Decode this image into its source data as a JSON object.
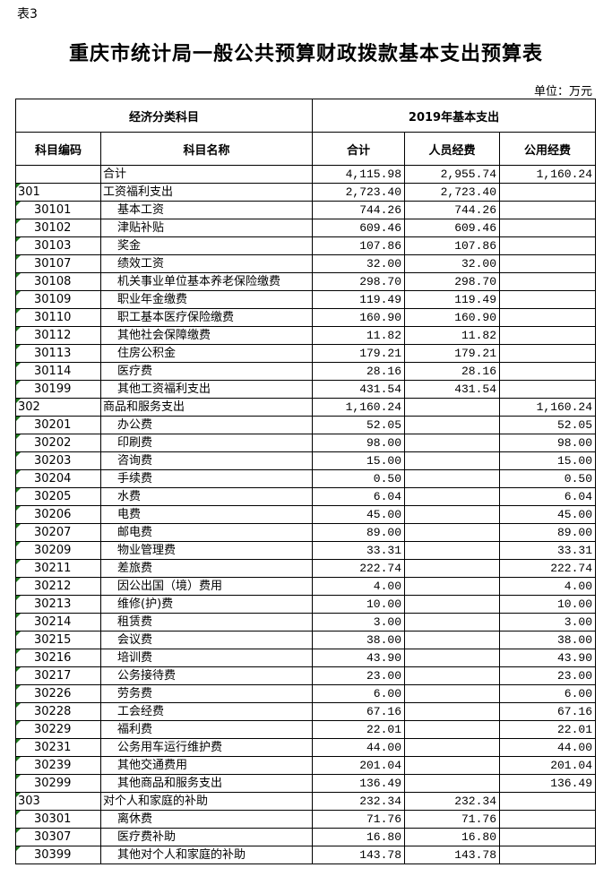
{
  "doc": {
    "label": "表3",
    "title": "重庆市统计局一般公共预算财政拨款基本支出预算表",
    "unit": "单位：万元"
  },
  "header": {
    "group_left": "经济分类科目",
    "group_right": "2019年基本支出",
    "code": "科目编码",
    "name": "科目名称",
    "total": "合计",
    "personnel": "人员经费",
    "public": "公用经费"
  },
  "rows": [
    {
      "code": "",
      "name": "合计",
      "total": "4,115.98",
      "personnel": "2,955.74",
      "public": "1,160.24",
      "level": 0
    },
    {
      "code": "301",
      "name": "工资福利支出",
      "total": "2,723.40",
      "personnel": "2,723.40",
      "public": "",
      "level": 1
    },
    {
      "code": "30101",
      "name": "基本工资",
      "total": "744.26",
      "personnel": "744.26",
      "public": "",
      "level": 2
    },
    {
      "code": "30102",
      "name": "津贴补贴",
      "total": "609.46",
      "personnel": "609.46",
      "public": "",
      "level": 2
    },
    {
      "code": "30103",
      "name": "奖金",
      "total": "107.86",
      "personnel": "107.86",
      "public": "",
      "level": 2
    },
    {
      "code": "30107",
      "name": "绩效工资",
      "total": "32.00",
      "personnel": "32.00",
      "public": "",
      "level": 2
    },
    {
      "code": "30108",
      "name": "机关事业单位基本养老保险缴费",
      "total": "298.70",
      "personnel": "298.70",
      "public": "",
      "level": 2
    },
    {
      "code": "30109",
      "name": "职业年金缴费",
      "total": "119.49",
      "personnel": "119.49",
      "public": "",
      "level": 2
    },
    {
      "code": "30110",
      "name": "职工基本医疗保险缴费",
      "total": "160.90",
      "personnel": "160.90",
      "public": "",
      "level": 2
    },
    {
      "code": "30112",
      "name": "其他社会保障缴费",
      "total": "11.82",
      "personnel": "11.82",
      "public": "",
      "level": 2
    },
    {
      "code": "30113",
      "name": "住房公积金",
      "total": "179.21",
      "personnel": "179.21",
      "public": "",
      "level": 2
    },
    {
      "code": "30114",
      "name": "医疗费",
      "total": "28.16",
      "personnel": "28.16",
      "public": "",
      "level": 2
    },
    {
      "code": "30199",
      "name": "其他工资福利支出",
      "total": "431.54",
      "personnel": "431.54",
      "public": "",
      "level": 2
    },
    {
      "code": "302",
      "name": "商品和服务支出",
      "total": "1,160.24",
      "personnel": "",
      "public": "1,160.24",
      "level": 1
    },
    {
      "code": "30201",
      "name": "办公费",
      "total": "52.05",
      "personnel": "",
      "public": "52.05",
      "level": 2
    },
    {
      "code": "30202",
      "name": "印刷费",
      "total": "98.00",
      "personnel": "",
      "public": "98.00",
      "level": 2
    },
    {
      "code": "30203",
      "name": "咨询费",
      "total": "15.00",
      "personnel": "",
      "public": "15.00",
      "level": 2
    },
    {
      "code": "30204",
      "name": "手续费",
      "total": "0.50",
      "personnel": "",
      "public": "0.50",
      "level": 2
    },
    {
      "code": "30205",
      "name": "水费",
      "total": "6.04",
      "personnel": "",
      "public": "6.04",
      "level": 2
    },
    {
      "code": "30206",
      "name": "电费",
      "total": "45.00",
      "personnel": "",
      "public": "45.00",
      "level": 2
    },
    {
      "code": "30207",
      "name": "邮电费",
      "total": "89.00",
      "personnel": "",
      "public": "89.00",
      "level": 2
    },
    {
      "code": "30209",
      "name": "物业管理费",
      "total": "33.31",
      "personnel": "",
      "public": "33.31",
      "level": 2
    },
    {
      "code": "30211",
      "name": "差旅费",
      "total": "222.74",
      "personnel": "",
      "public": "222.74",
      "level": 2
    },
    {
      "code": "30212",
      "name": "因公出国（境）费用",
      "total": "4.00",
      "personnel": "",
      "public": "4.00",
      "level": 2
    },
    {
      "code": "30213",
      "name": "维修(护)费",
      "total": "10.00",
      "personnel": "",
      "public": "10.00",
      "level": 2
    },
    {
      "code": "30214",
      "name": "租赁费",
      "total": "3.00",
      "personnel": "",
      "public": "3.00",
      "level": 2
    },
    {
      "code": "30215",
      "name": "会议费",
      "total": "38.00",
      "personnel": "",
      "public": "38.00",
      "level": 2
    },
    {
      "code": "30216",
      "name": "培训费",
      "total": "43.90",
      "personnel": "",
      "public": "43.90",
      "level": 2
    },
    {
      "code": "30217",
      "name": "公务接待费",
      "total": "23.00",
      "personnel": "",
      "public": "23.00",
      "level": 2
    },
    {
      "code": "30226",
      "name": "劳务费",
      "total": "6.00",
      "personnel": "",
      "public": "6.00",
      "level": 2
    },
    {
      "code": "30228",
      "name": "工会经费",
      "total": "67.16",
      "personnel": "",
      "public": "67.16",
      "level": 2
    },
    {
      "code": "30229",
      "name": "福利费",
      "total": "22.01",
      "personnel": "",
      "public": "22.01",
      "level": 2
    },
    {
      "code": "30231",
      "name": "公务用车运行维护费",
      "total": "44.00",
      "personnel": "",
      "public": "44.00",
      "level": 2
    },
    {
      "code": "30239",
      "name": "其他交通费用",
      "total": "201.04",
      "personnel": "",
      "public": "201.04",
      "level": 2
    },
    {
      "code": "30299",
      "name": "其他商品和服务支出",
      "total": "136.49",
      "personnel": "",
      "public": "136.49",
      "level": 2
    },
    {
      "code": "303",
      "name": "对个人和家庭的补助",
      "total": "232.34",
      "personnel": "232.34",
      "public": "",
      "level": 1
    },
    {
      "code": "30301",
      "name": "离休费",
      "total": "71.76",
      "personnel": "71.76",
      "public": "",
      "level": 2
    },
    {
      "code": "30307",
      "name": "医疗费补助",
      "total": "16.80",
      "personnel": "16.80",
      "public": "",
      "level": 2
    },
    {
      "code": "30399",
      "name": "其他对个人和家庭的补助",
      "total": "143.78",
      "personnel": "143.78",
      "public": "",
      "level": 2
    }
  ],
  "colors": {
    "cell_marker": "#1f7a1f"
  }
}
